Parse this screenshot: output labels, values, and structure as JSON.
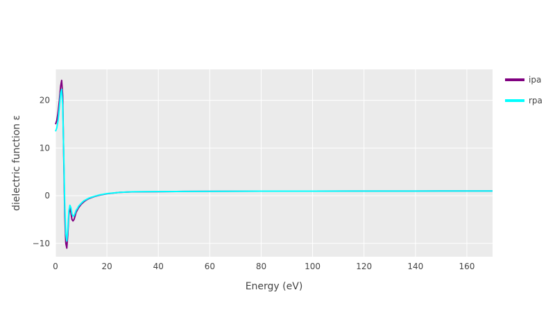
{
  "chart_data": {
    "type": "line",
    "title": "",
    "xlabel": "Energy (eV)",
    "ylabel": "dielectric function ε",
    "xlim": [
      0,
      170
    ],
    "ylim": [
      -12.8,
      26.5
    ],
    "xticks": [
      0,
      20,
      40,
      60,
      80,
      100,
      120,
      140,
      160
    ],
    "yticks": [
      -10,
      0,
      10,
      20
    ],
    "grid": true,
    "legend_position": "top-right",
    "plot_background": "#EBEBEB",
    "series": [
      {
        "name": "ipa",
        "color": "#800080",
        "x": [
          0,
          0.5,
          1,
          1.5,
          2,
          2.4,
          2.8,
          3.2,
          3.6,
          4.0,
          4.4,
          4.8,
          5.2,
          5.6,
          6.0,
          6.4,
          6.8,
          7.2,
          7.6,
          8.0,
          8.5,
          9.0,
          10,
          11,
          12,
          13,
          15,
          17,
          20,
          25,
          30,
          40,
          50,
          60,
          80,
          100,
          120,
          140,
          160,
          170
        ],
        "y": [
          15.0,
          15.8,
          17.5,
          20.0,
          23.0,
          24.2,
          21.0,
          8.0,
          -4.0,
          -10.0,
          -11.0,
          -8.0,
          -4.0,
          -2.5,
          -3.5,
          -5.0,
          -5.3,
          -5.0,
          -4.3,
          -3.5,
          -3.0,
          -2.5,
          -1.8,
          -1.3,
          -0.9,
          -0.6,
          -0.2,
          0.1,
          0.4,
          0.7,
          0.8,
          0.85,
          0.9,
          0.92,
          0.95,
          0.96,
          0.97,
          0.98,
          0.99,
          1.0
        ]
      },
      {
        "name": "rpa",
        "color": "#00FFFF",
        "x": [
          0,
          0.5,
          1,
          1.5,
          2,
          2.4,
          2.8,
          3.2,
          3.6,
          4.0,
          4.4,
          4.8,
          5.2,
          5.6,
          6.0,
          6.4,
          6.8,
          7.2,
          7.6,
          8.0,
          8.5,
          9.0,
          10,
          11,
          12,
          13,
          15,
          17,
          20,
          25,
          30,
          40,
          50,
          60,
          80,
          100,
          120,
          140,
          160,
          170
        ],
        "y": [
          13.5,
          14.2,
          15.8,
          18.5,
          21.5,
          22.3,
          19.0,
          9.0,
          -2.0,
          -8.0,
          -9.5,
          -7.0,
          -3.2,
          -2.0,
          -2.5,
          -3.8,
          -4.3,
          -4.2,
          -3.7,
          -3.1,
          -2.7,
          -2.2,
          -1.6,
          -1.1,
          -0.8,
          -0.5,
          -0.15,
          0.15,
          0.45,
          0.7,
          0.82,
          0.86,
          0.9,
          0.92,
          0.95,
          0.96,
          0.97,
          0.98,
          0.99,
          1.0
        ]
      }
    ]
  }
}
